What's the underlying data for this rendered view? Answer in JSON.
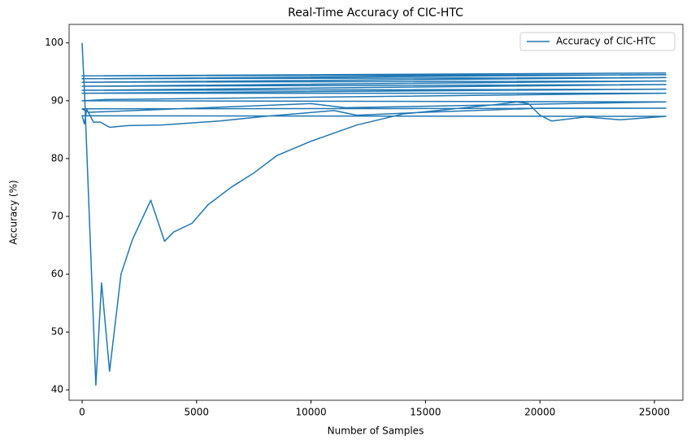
{
  "chart_data": {
    "type": "line",
    "title": "Real-Time Accuracy of CIC-HTC",
    "x_label": "Number of Samples",
    "y_label": "Accuracy (%)",
    "xlim": [
      -568,
      26243
    ],
    "ylim": [
      38.2,
      103.2
    ],
    "xticks": [
      0,
      5000,
      10000,
      15000,
      20000,
      25000
    ],
    "yticks": [
      40,
      50,
      60,
      70,
      80,
      90,
      100
    ],
    "grid": false,
    "legend": "upper right",
    "series": [
      {
        "name": "Accuracy of CIC-HTC",
        "color": "#1f77b4",
        "x": [
          0,
          50,
          100,
          600,
          850,
          1200,
          1700,
          2200,
          3000,
          3600,
          4000,
          4800,
          5500,
          6500,
          7500,
          8500,
          10000,
          12000,
          14000,
          16000,
          18000,
          19000,
          19500,
          20000,
          20500,
          22000,
          23500,
          25500,
          0,
          100,
          200,
          500,
          800,
          1200,
          2000,
          3500,
          6000,
          8000,
          11000,
          12000,
          15000,
          20000,
          25500,
          0,
          300,
          10000,
          11500,
          25500,
          0,
          1000,
          25500,
          0,
          25500,
          0,
          25500,
          0,
          25500,
          0,
          25500,
          0,
          25500,
          0,
          25500
        ],
        "values": [
          100,
          95.8,
          92,
          40.8,
          58.5,
          43.2,
          60,
          66,
          72.8,
          65.7,
          67.3,
          68.8,
          72,
          75,
          77.5,
          80.5,
          83,
          85.8,
          87.7,
          88.5,
          89.3,
          89.8,
          89.5,
          87.5,
          86.5,
          87.2,
          86.7,
          87.3,
          87.4,
          86,
          88.5,
          86.3,
          86.3,
          85.4,
          85.7,
          85.8,
          86.5,
          87.3,
          88.3,
          87.5,
          88,
          88.7,
          88.7,
          88.6,
          88,
          89.5,
          88.8,
          89.8,
          90,
          90.2,
          91.3,
          91.3,
          92,
          91.8,
          92.8,
          92.5,
          93.4,
          93.2,
          94,
          93.8,
          94.5,
          94.3,
          94.8
        ]
      }
    ]
  }
}
